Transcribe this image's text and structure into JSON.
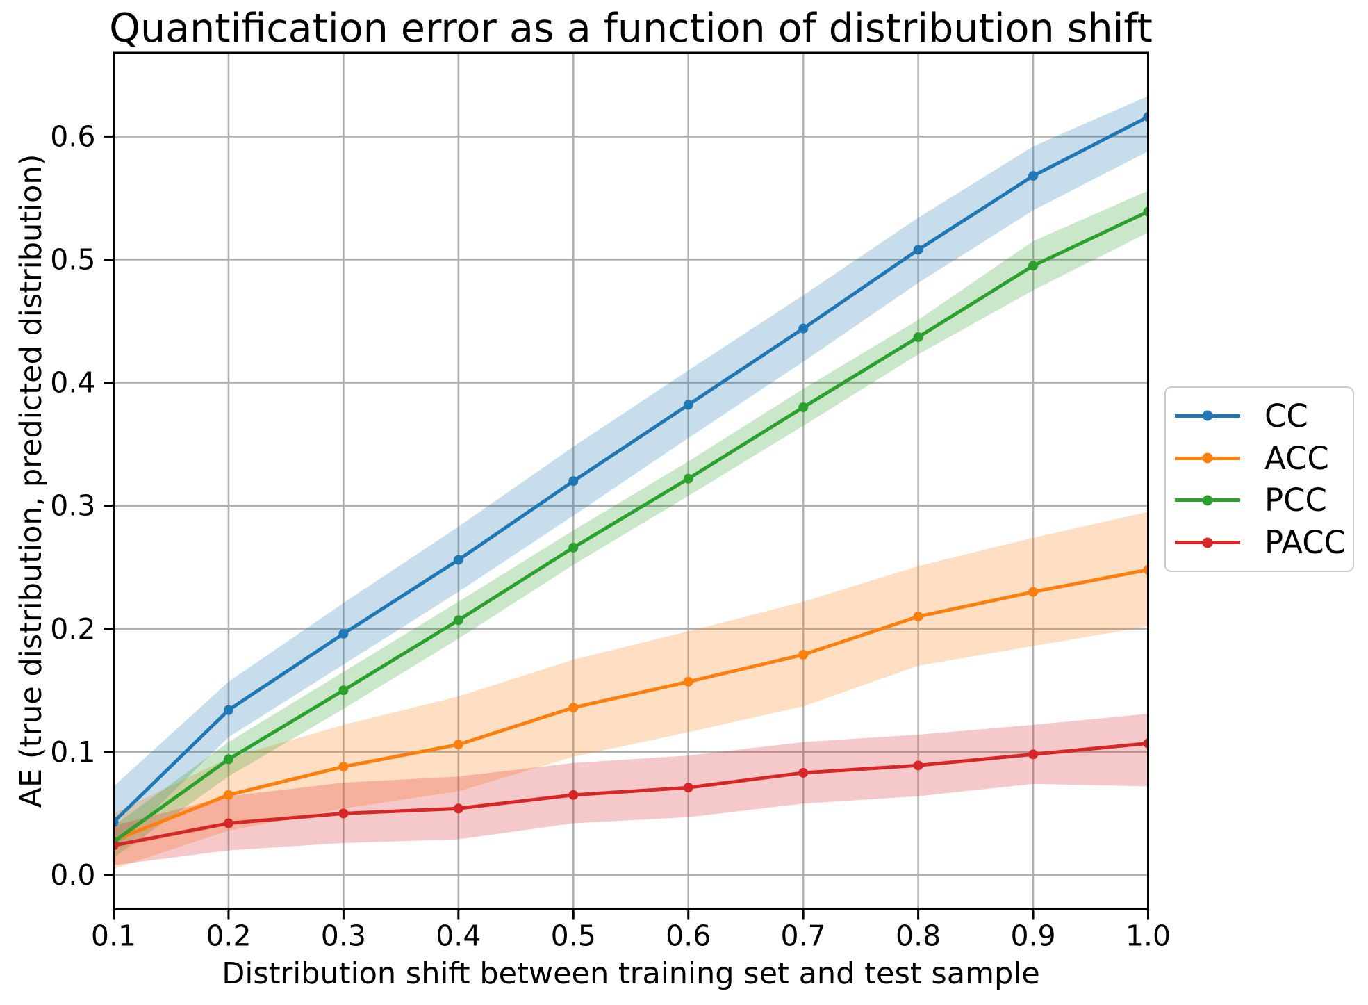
{
  "chart_data": {
    "type": "line",
    "title": "Quantification error as a function of distribution shift",
    "xlabel": "Distribution shift between training set and test sample",
    "ylabel": "AE (true distribution, predicted distribution)",
    "x": [
      0.1,
      0.2,
      0.3,
      0.4,
      0.5,
      0.6,
      0.7,
      0.8,
      0.9,
      1.0
    ],
    "xtick_labels": [
      "0.1",
      "0.2",
      "0.3",
      "0.4",
      "0.5",
      "0.6",
      "0.7",
      "0.8",
      "0.9",
      "1.0"
    ],
    "ytick_values": [
      0.0,
      0.1,
      0.2,
      0.3,
      0.4,
      0.5,
      0.6
    ],
    "ytick_labels": [
      "0.0",
      "0.1",
      "0.2",
      "0.3",
      "0.4",
      "0.5",
      "0.6"
    ],
    "xlim": [
      0.1,
      1.0
    ],
    "ylim": [
      -0.028,
      0.668
    ],
    "grid": true,
    "grid_color": "#b0b0b0",
    "spine_color": "#000000",
    "band_alpha": 0.25,
    "legend_position": "outside-right",
    "series": [
      {
        "name": "CC",
        "color": "#1f77b4",
        "values": [
          0.043,
          0.134,
          0.196,
          0.256,
          0.32,
          0.382,
          0.444,
          0.508,
          0.568,
          0.616
        ],
        "band_upper": [
          0.072,
          0.157,
          0.221,
          0.283,
          0.348,
          0.41,
          0.471,
          0.534,
          0.592,
          0.633
        ],
        "band_lower": [
          0.02,
          0.112,
          0.171,
          0.23,
          0.292,
          0.355,
          0.417,
          0.481,
          0.54,
          0.588
        ]
      },
      {
        "name": "ACC",
        "color": "#ff7f0e",
        "values": [
          0.028,
          0.065,
          0.088,
          0.106,
          0.136,
          0.157,
          0.179,
          0.21,
          0.23,
          0.248
        ],
        "band_upper": [
          0.05,
          0.095,
          0.122,
          0.145,
          0.175,
          0.198,
          0.222,
          0.251,
          0.274,
          0.295
        ],
        "band_lower": [
          0.005,
          0.036,
          0.054,
          0.068,
          0.096,
          0.116,
          0.137,
          0.17,
          0.186,
          0.202
        ]
      },
      {
        "name": "PCC",
        "color": "#2ca02c",
        "values": [
          0.027,
          0.094,
          0.15,
          0.207,
          0.266,
          0.322,
          0.38,
          0.437,
          0.495,
          0.539
        ],
        "band_upper": [
          0.04,
          0.108,
          0.165,
          0.222,
          0.28,
          0.336,
          0.395,
          0.451,
          0.515,
          0.556
        ],
        "band_lower": [
          0.014,
          0.08,
          0.135,
          0.192,
          0.252,
          0.308,
          0.365,
          0.423,
          0.475,
          0.522
        ]
      },
      {
        "name": "PACC",
        "color": "#d62728",
        "values": [
          0.024,
          0.042,
          0.05,
          0.054,
          0.065,
          0.071,
          0.083,
          0.089,
          0.098,
          0.107
        ],
        "band_upper": [
          0.04,
          0.064,
          0.075,
          0.08,
          0.091,
          0.097,
          0.108,
          0.114,
          0.122,
          0.131
        ],
        "band_lower": [
          0.008,
          0.02,
          0.026,
          0.029,
          0.042,
          0.047,
          0.058,
          0.064,
          0.074,
          0.072
        ]
      }
    ]
  }
}
